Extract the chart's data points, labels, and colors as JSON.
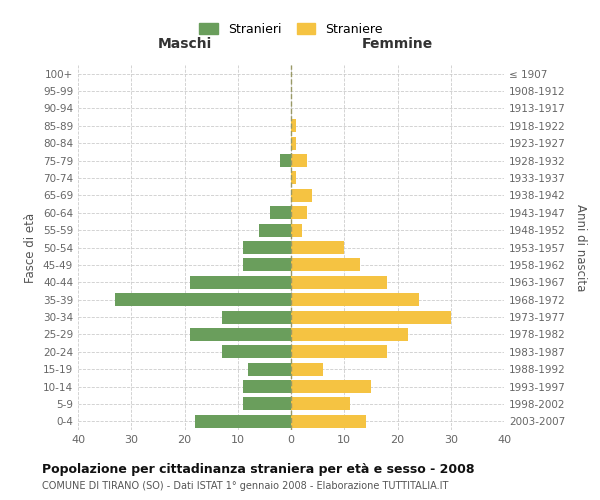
{
  "age_groups": [
    "0-4",
    "5-9",
    "10-14",
    "15-19",
    "20-24",
    "25-29",
    "30-34",
    "35-39",
    "40-44",
    "45-49",
    "50-54",
    "55-59",
    "60-64",
    "65-69",
    "70-74",
    "75-79",
    "80-84",
    "85-89",
    "90-94",
    "95-99",
    "100+"
  ],
  "birth_years": [
    "2003-2007",
    "1998-2002",
    "1993-1997",
    "1988-1992",
    "1983-1987",
    "1978-1982",
    "1973-1977",
    "1968-1972",
    "1963-1967",
    "1958-1962",
    "1953-1957",
    "1948-1952",
    "1943-1947",
    "1938-1942",
    "1933-1937",
    "1928-1932",
    "1923-1927",
    "1918-1922",
    "1913-1917",
    "1908-1912",
    "≤ 1907"
  ],
  "maschi": [
    18,
    9,
    9,
    8,
    13,
    19,
    13,
    33,
    19,
    9,
    9,
    6,
    4,
    0,
    0,
    2,
    0,
    0,
    0,
    0,
    0
  ],
  "femmine": [
    14,
    11,
    15,
    6,
    18,
    22,
    30,
    24,
    18,
    13,
    10,
    2,
    3,
    4,
    1,
    3,
    1,
    1,
    0,
    0,
    0
  ],
  "maschi_color": "#6a9e5c",
  "femmine_color": "#f5c342",
  "bg_color": "#ffffff",
  "grid_color": "#cccccc",
  "bar_height": 0.75,
  "xlim": 40,
  "title": "Popolazione per cittadinanza straniera per età e sesso - 2008",
  "subtitle": "COMUNE DI TIRANO (SO) - Dati ISTAT 1° gennaio 2008 - Elaborazione TUTTITALIA.IT",
  "xlabel_left": "Maschi",
  "xlabel_right": "Femmine",
  "ylabel_left": "Fasce di età",
  "ylabel_right": "Anni di nascita",
  "legend_stranieri": "Stranieri",
  "legend_straniere": "Straniere"
}
